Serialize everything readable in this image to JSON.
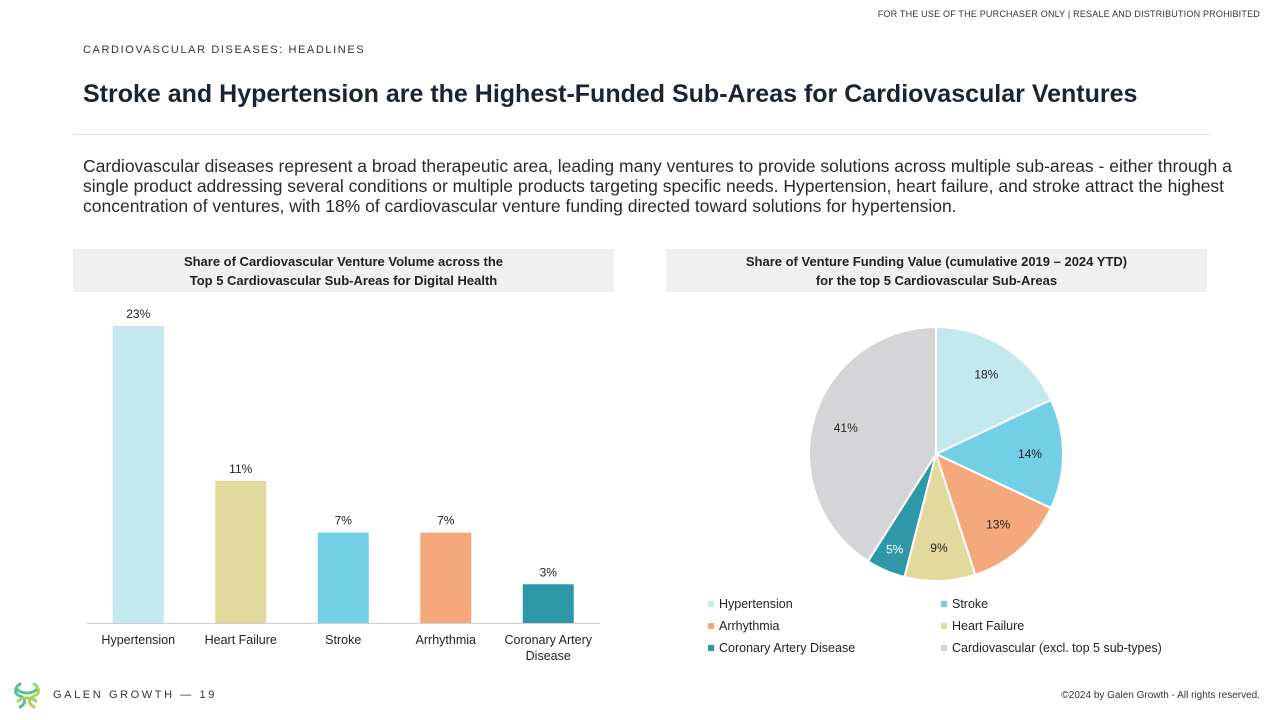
{
  "disclaimer": "FOR THE USE OF THE PURCHASER ONLY | RESALE AND DISTRIBUTION PROHIBITED",
  "kicker": "CARDIOVASCULAR DISEASES: HEADLINES",
  "title": "Stroke and Hypertension are the Highest-Funded Sub-Areas for Cardiovascular Ventures",
  "intro": "Cardiovascular diseases represent a broad therapeutic area, leading many ventures to provide solutions across multiple sub-areas - either through a single product addressing several conditions or multiple products targeting specific needs. Hypertension, heart failure, and stroke attract the highest concentration of ventures, with 18% of cardiovascular venture funding directed toward solutions for hypertension.",
  "chart_data": [
    {
      "type": "bar",
      "title_lines": [
        "Share of Cardiovascular Venture Volume across the",
        "Top 5 Cardiovascular Sub-Areas for Digital Health"
      ],
      "categories": [
        "Hypertension",
        "Heart Failure",
        "Stroke",
        "Arrhythmia",
        "Coronary Artery Disease"
      ],
      "category_lines": [
        [
          "Hypertension"
        ],
        [
          "Heart Failure"
        ],
        [
          "Stroke"
        ],
        [
          "Arrhythmia"
        ],
        [
          "Coronary Artery",
          "Disease"
        ]
      ],
      "values": [
        23,
        11,
        7,
        7,
        3
      ],
      "labels": [
        "23%",
        "11%",
        "7%",
        "7%",
        "3%"
      ],
      "colors": [
        "#c3e8ee",
        "#e3d99d",
        "#72cfe6",
        "#f4a87c",
        "#2e98a8"
      ],
      "ylim": [
        0,
        23
      ],
      "grid": false
    },
    {
      "type": "pie",
      "title_lines": [
        "Share of Venture Funding Value (cumulative 2019 – 2024 YTD)",
        "for the top 5 Cardiovascular Sub-Areas"
      ],
      "slices": [
        {
          "label": "Hypertension",
          "value": 18,
          "text": "18%",
          "color": "#c3e8ee",
          "text_color": "#222222"
        },
        {
          "label": "Stroke",
          "value": 14,
          "text": "14%",
          "color": "#72cfe6",
          "text_color": "#222222"
        },
        {
          "label": "Arrhythmia",
          "value": 13,
          "text": "13%",
          "color": "#f4a87c",
          "text_color": "#222222"
        },
        {
          "label": "Heart Failure",
          "value": 9,
          "text": "9%",
          "color": "#e3d99d",
          "text_color": "#222222"
        },
        {
          "label": "Coronary Artery Disease",
          "value": 5,
          "text": "5%",
          "color": "#2e98a8",
          "text_color": "#ffffff"
        },
        {
          "label": "Cardiovascular (excl. top 5 sub-types)",
          "value": 41,
          "text": "41%",
          "color": "#d5d5d7",
          "text_color": "#222222"
        }
      ],
      "legend": [
        {
          "label": "Hypertension",
          "color": "#c3e8ee"
        },
        {
          "label": "Stroke",
          "color": "#72cfe6"
        },
        {
          "label": "Arrhythmia",
          "color": "#f4a87c"
        },
        {
          "label": "Heart Failure",
          "color": "#e3d99d"
        },
        {
          "label": "Coronary Artery Disease",
          "color": "#2e98a8"
        },
        {
          "label": "Cardiovascular (excl. top 5 sub-types)",
          "color": "#d5d5d7"
        }
      ],
      "legend_placement": "bottom"
    }
  ],
  "footer": {
    "brand": "GALEN GROWTH",
    "page": "19",
    "brand_line": "GALEN GROWTH  —  19",
    "copyright": "©2024 by Galen Growth  - All rights reserved.",
    "logo_colors": [
      "#5cc08c",
      "#a4d65e"
    ],
    "logo_icon": "galen-growth-logo"
  }
}
